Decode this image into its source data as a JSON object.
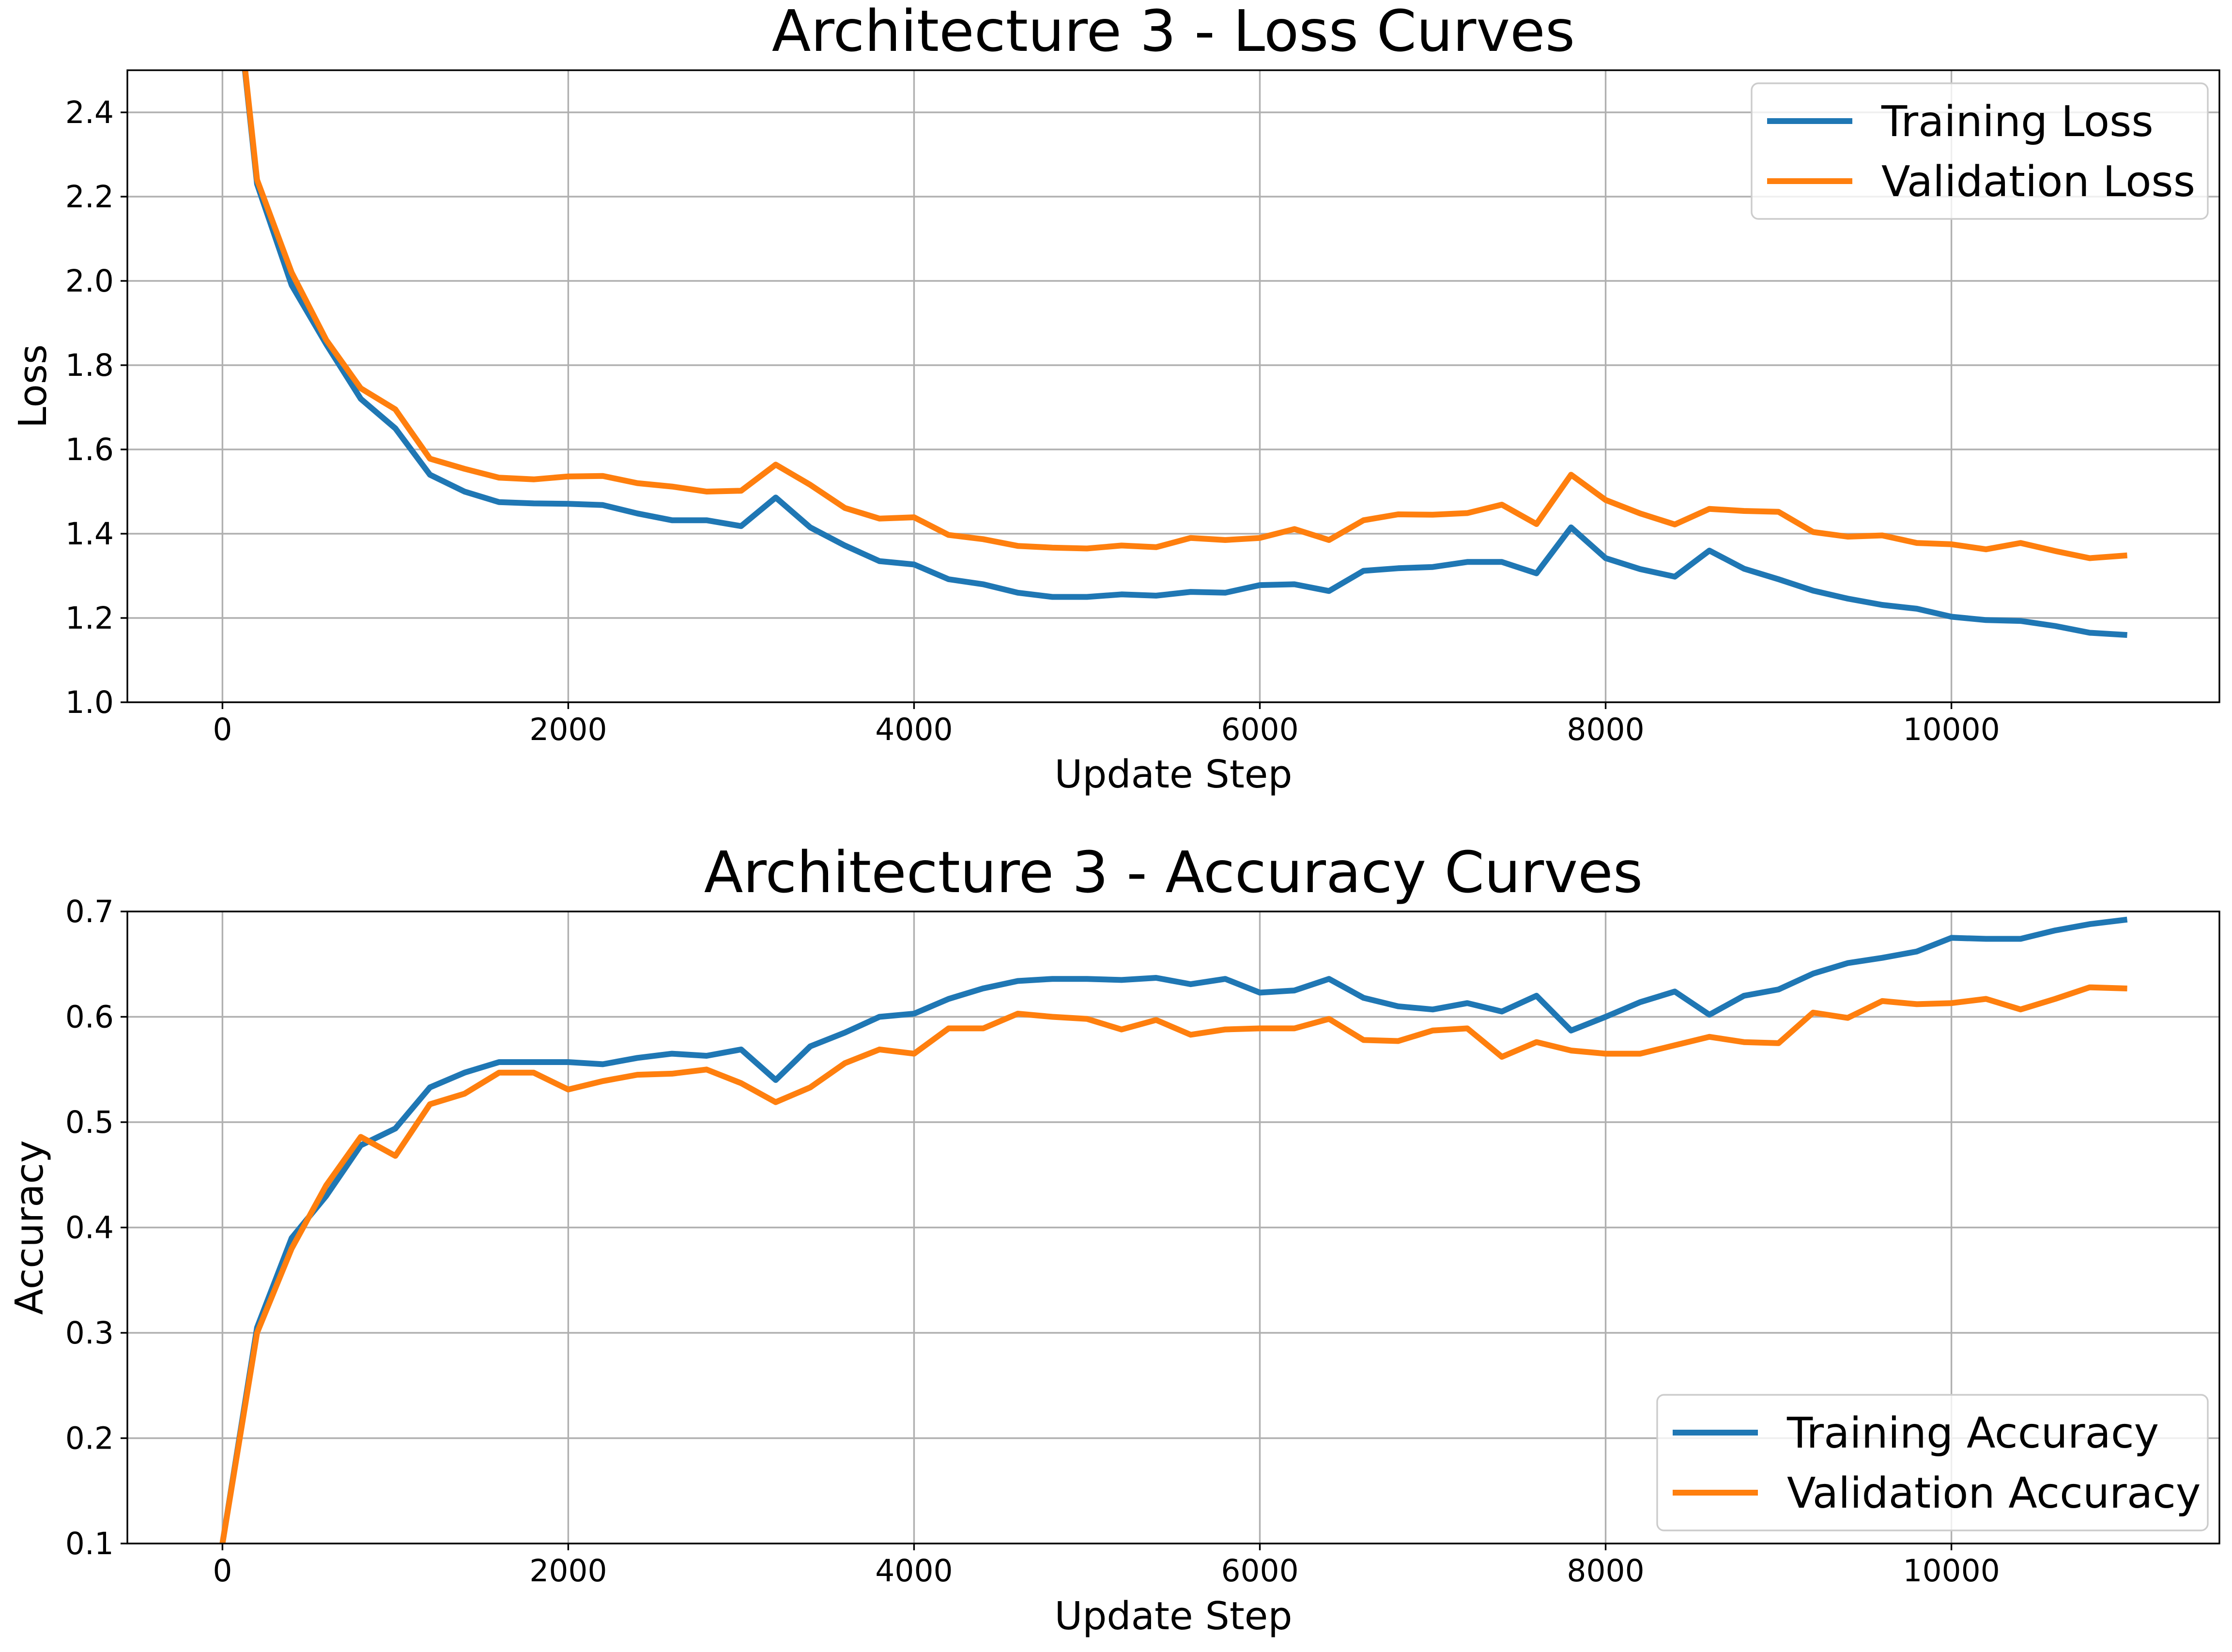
{
  "chart_data": [
    {
      "type": "line",
      "title": "Architecture 3 - Loss Curves",
      "xlabel": "Update Step",
      "ylabel": "Loss",
      "xlim": [
        -550,
        11550
      ],
      "ylim": [
        1.0,
        2.5
      ],
      "xticks": [
        0,
        2000,
        4000,
        6000,
        8000,
        10000
      ],
      "yticks": [
        1.0,
        1.2,
        1.4,
        1.6,
        1.8,
        2.0,
        2.2,
        2.4
      ],
      "ytick_labels": [
        "1.0",
        "1.2",
        "1.4",
        "1.6",
        "1.8",
        "2.0",
        "2.2",
        "2.4"
      ],
      "grid": true,
      "legend_position": "upper right",
      "x": [
        0,
        200,
        400,
        600,
        800,
        1000,
        1200,
        1400,
        1600,
        1800,
        2000,
        2200,
        2400,
        2600,
        2800,
        3000,
        3200,
        3400,
        3600,
        3800,
        4000,
        4200,
        4400,
        4600,
        4800,
        5000,
        5200,
        5400,
        5600,
        5800,
        6000,
        6200,
        6400,
        6600,
        6800,
        7000,
        7200,
        7400,
        7600,
        7800,
        8000,
        8200,
        8400,
        8600,
        8800,
        9000,
        9200,
        9400,
        9600,
        9800,
        10000,
        10200,
        10400,
        10600,
        10800,
        11000
      ],
      "series": [
        {
          "name": "Training Loss",
          "color": "#1f77b4",
          "values": [
            3.0,
            2.23,
            1.99,
            1.85,
            1.72,
            1.65,
            1.54,
            1.5,
            1.475,
            1.472,
            1.471,
            1.468,
            1.448,
            1.432,
            1.432,
            1.418,
            1.486,
            1.415,
            1.372,
            1.335,
            1.327,
            1.292,
            1.28,
            1.26,
            1.25,
            1.25,
            1.256,
            1.253,
            1.262,
            1.26,
            1.278,
            1.28,
            1.264,
            1.312,
            1.318,
            1.321,
            1.333,
            1.333,
            1.306,
            1.415,
            1.342,
            1.316,
            1.298,
            1.36,
            1.317,
            1.292,
            1.265,
            1.246,
            1.231,
            1.222,
            1.203,
            1.195,
            1.193,
            1.181,
            1.165,
            1.16
          ]
        },
        {
          "name": "Validation Loss",
          "color": "#ff7f0e",
          "values": [
            3.0,
            2.24,
            2.02,
            1.86,
            1.745,
            1.695,
            1.578,
            1.554,
            1.533,
            1.529,
            1.536,
            1.537,
            1.52,
            1.512,
            1.5,
            1.502,
            1.564,
            1.516,
            1.461,
            1.436,
            1.439,
            1.397,
            1.387,
            1.371,
            1.367,
            1.365,
            1.372,
            1.368,
            1.39,
            1.385,
            1.39,
            1.411,
            1.385,
            1.432,
            1.446,
            1.445,
            1.449,
            1.469,
            1.423,
            1.54,
            1.48,
            1.448,
            1.422,
            1.459,
            1.454,
            1.452,
            1.404,
            1.393,
            1.396,
            1.378,
            1.375,
            1.363,
            1.378,
            1.359,
            1.342,
            1.348
          ]
        }
      ]
    },
    {
      "type": "line",
      "title": "Architecture 3 - Accuracy Curves",
      "xlabel": "Update Step",
      "ylabel": "Accuracy",
      "xlim": [
        -550,
        11550
      ],
      "ylim": [
        0.1,
        0.7
      ],
      "xticks": [
        0,
        2000,
        4000,
        6000,
        8000,
        10000
      ],
      "yticks": [
        0.1,
        0.2,
        0.3,
        0.4,
        0.5,
        0.6,
        0.7
      ],
      "ytick_labels": [
        "0.1",
        "0.2",
        "0.3",
        "0.4",
        "0.5",
        "0.6",
        "0.7"
      ],
      "grid": true,
      "legend_position": "lower right",
      "x": [
        0,
        200,
        400,
        600,
        800,
        1000,
        1200,
        1400,
        1600,
        1800,
        2000,
        2200,
        2400,
        2600,
        2800,
        3000,
        3200,
        3400,
        3600,
        3800,
        4000,
        4200,
        4400,
        4600,
        4800,
        5000,
        5200,
        5400,
        5600,
        5800,
        6000,
        6200,
        6400,
        6600,
        6800,
        7000,
        7200,
        7400,
        7600,
        7800,
        8000,
        8200,
        8400,
        8600,
        8800,
        9000,
        9200,
        9400,
        9600,
        9800,
        10000,
        10200,
        10400,
        10600,
        10800,
        11000
      ],
      "series": [
        {
          "name": "Training Accuracy",
          "color": "#1f77b4",
          "values": [
            0.1,
            0.305,
            0.39,
            0.43,
            0.478,
            0.494,
            0.533,
            0.547,
            0.557,
            0.557,
            0.557,
            0.555,
            0.561,
            0.565,
            0.563,
            0.569,
            0.54,
            0.572,
            0.585,
            0.6,
            0.603,
            0.617,
            0.627,
            0.634,
            0.636,
            0.636,
            0.635,
            0.637,
            0.631,
            0.636,
            0.623,
            0.625,
            0.636,
            0.618,
            0.61,
            0.607,
            0.613,
            0.605,
            0.62,
            0.587,
            0.6,
            0.614,
            0.624,
            0.602,
            0.62,
            0.626,
            0.641,
            0.651,
            0.656,
            0.662,
            0.675,
            0.674,
            0.674,
            0.682,
            0.688,
            0.692
          ]
        },
        {
          "name": "Validation Accuracy",
          "color": "#ff7f0e",
          "values": [
            0.1,
            0.3,
            0.38,
            0.44,
            0.486,
            0.468,
            0.517,
            0.527,
            0.547,
            0.547,
            0.531,
            0.539,
            0.545,
            0.546,
            0.55,
            0.537,
            0.519,
            0.533,
            0.556,
            0.569,
            0.565,
            0.589,
            0.589,
            0.603,
            0.6,
            0.598,
            0.588,
            0.597,
            0.583,
            0.588,
            0.589,
            0.589,
            0.598,
            0.578,
            0.577,
            0.587,
            0.589,
            0.562,
            0.576,
            0.568,
            0.565,
            0.565,
            0.573,
            0.581,
            0.576,
            0.575,
            0.604,
            0.599,
            0.615,
            0.612,
            0.613,
            0.617,
            0.607,
            0.617,
            0.628,
            0.627
          ]
        }
      ]
    }
  ]
}
